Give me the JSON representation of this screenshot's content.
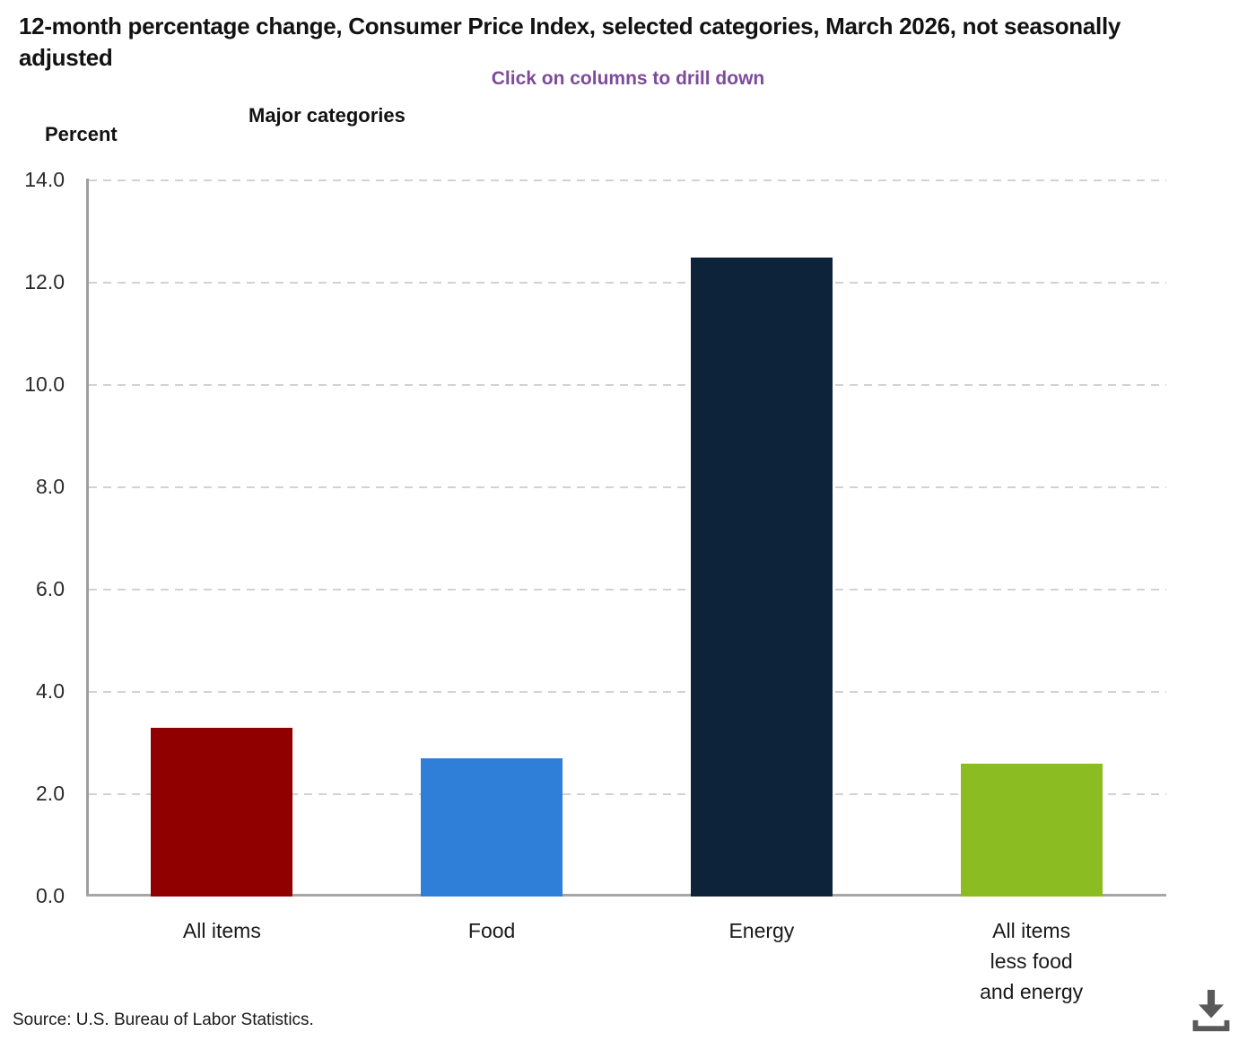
{
  "header": {
    "title": "12-month percentage change, Consumer Price Index, selected categories, March 2026, not seasonally adjusted",
    "instruction": "Click on columns to drill down"
  },
  "chart_data": {
    "type": "bar",
    "title": "Major categories",
    "ylabel": "Percent",
    "ylim": [
      0,
      14
    ],
    "y_tick_step": 2,
    "y_tick_decimals": 1,
    "grid": "horizontal-dashed",
    "legend": "none",
    "categories": [
      "All items",
      "Food",
      "Energy",
      "All items less food and energy"
    ],
    "category_label_lines": [
      [
        "All items"
      ],
      [
        "Food"
      ],
      [
        "Energy"
      ],
      [
        "All items",
        "less food",
        "and energy"
      ]
    ],
    "values": [
      3.3,
      2.7,
      12.5,
      2.6
    ],
    "bar_colors": [
      "#910000",
      "#2f7ed8",
      "#0d233a",
      "#8bbc21"
    ]
  },
  "footer": {
    "source": "Source: U.S. Bureau of Labor Statistics."
  },
  "icons": {
    "download": "download-icon"
  },
  "colors": {
    "instruction_purple": "#7d4a9c",
    "gridline": "#d2d2d2",
    "axis_line": "#9e9e9e",
    "icon_gray": "#595959"
  }
}
